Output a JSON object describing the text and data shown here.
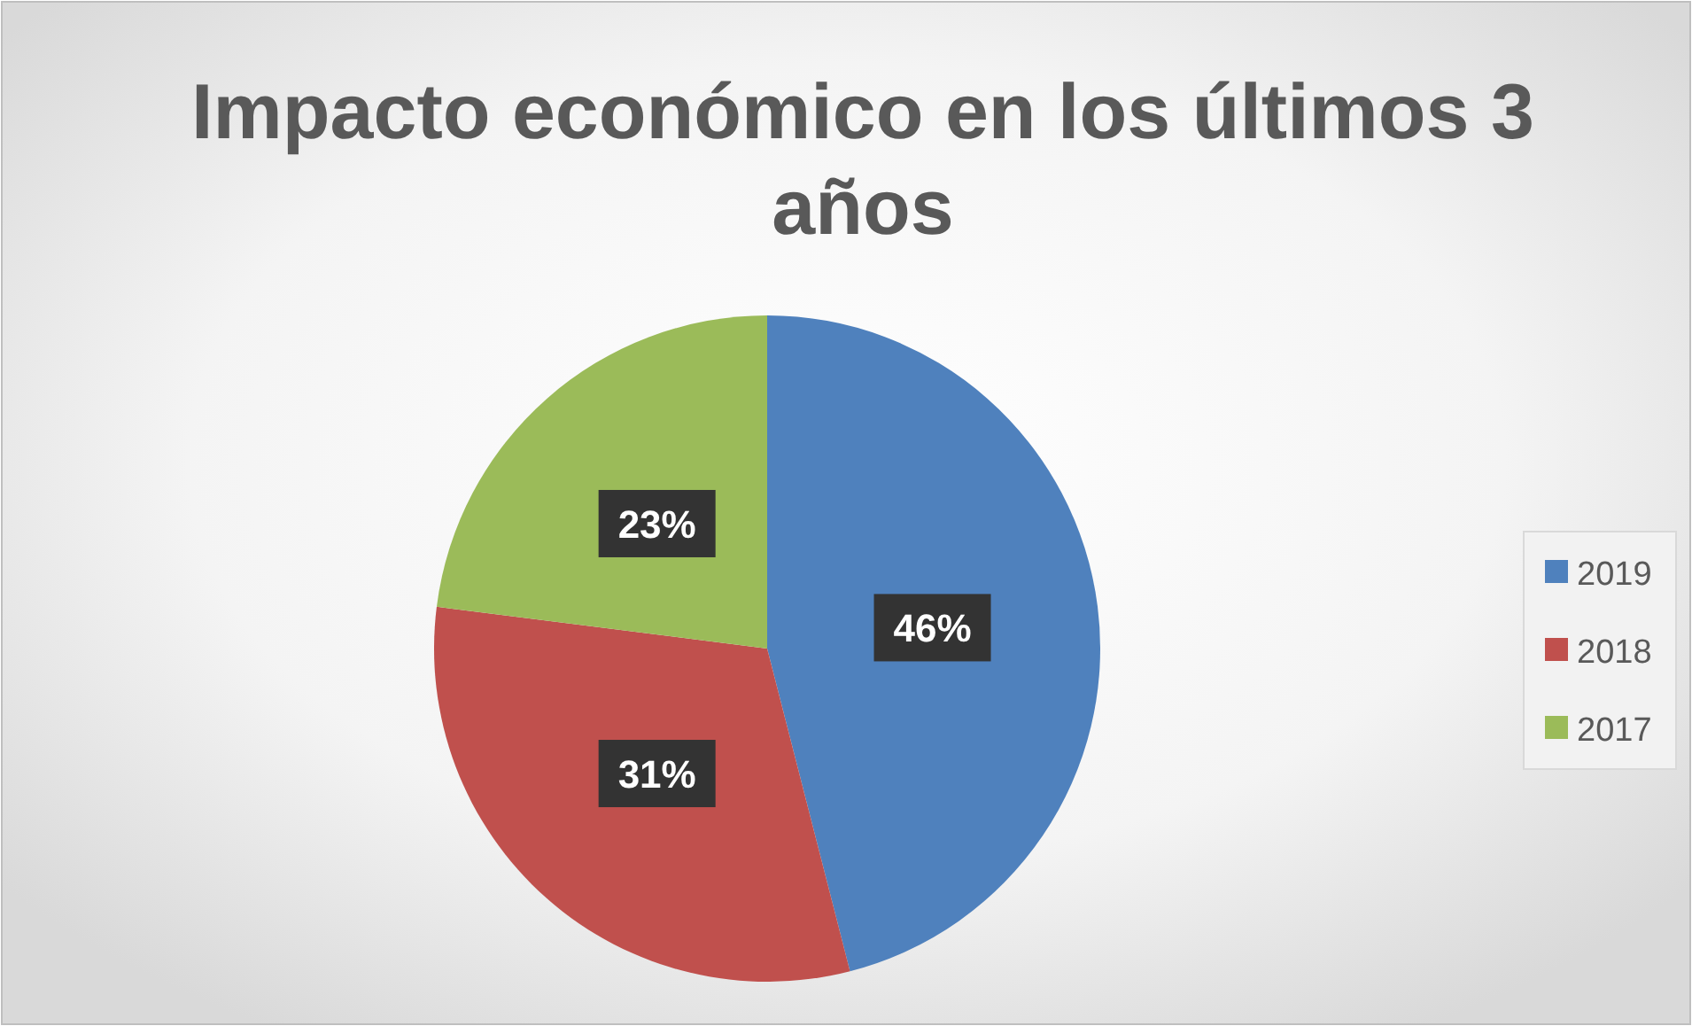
{
  "chart_data": {
    "type": "pie",
    "title": "Impacto económico en los últimos 3 años",
    "categories": [
      "2019",
      "2018",
      "2017"
    ],
    "values": [
      46,
      31,
      23
    ],
    "colors": [
      "#4f81bd",
      "#c0504d",
      "#9bbb59"
    ],
    "value_labels": [
      "46%",
      "31%",
      "23%"
    ],
    "legend": "right"
  }
}
